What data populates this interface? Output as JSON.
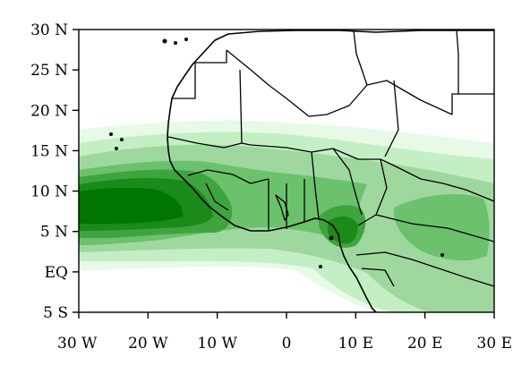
{
  "map": {
    "lon_range": [
      -30,
      30
    ],
    "lat_range": [
      -5,
      30
    ],
    "x_ticks": [
      {
        "lon": -30,
        "label": "30 W"
      },
      {
        "lon": -20,
        "label": "20 W"
      },
      {
        "lon": -10,
        "label": "10 W"
      },
      {
        "lon": 0,
        "label": "0"
      },
      {
        "lon": 10,
        "label": "10 E"
      },
      {
        "lon": 20,
        "label": "20 E"
      },
      {
        "lon": 30,
        "label": "30 E"
      }
    ],
    "y_ticks": [
      {
        "lat": 30,
        "label": "30 N"
      },
      {
        "lat": 25,
        "label": "25 N"
      },
      {
        "lat": 20,
        "label": "20 N"
      },
      {
        "lat": 15,
        "label": "15 N"
      },
      {
        "lat": 10,
        "label": "10 N"
      },
      {
        "lat": 5,
        "label": "5 N"
      },
      {
        "lat": 0,
        "label": "EQ"
      },
      {
        "lat": -5,
        "label": "5 S"
      }
    ],
    "colors": {
      "level1": "#e6fae6",
      "level2": "#c4eec4",
      "level3": "#9fd89f",
      "level4": "#6cc16c",
      "level5": "#3ea43e",
      "level6": "#1a8a1a",
      "level7": "#007500",
      "coastline": "#000000"
    }
  }
}
